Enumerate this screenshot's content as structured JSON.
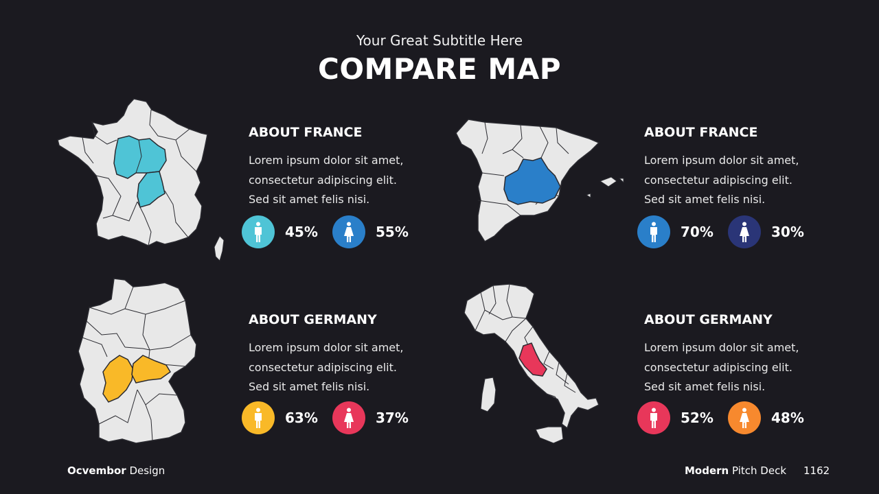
{
  "header": {
    "subtitle": "Your Great Subtitle Here",
    "title": "COMPARE MAP"
  },
  "colors": {
    "background": "#1b1a20",
    "map_fill": "#e8e8e8",
    "cyan": "#4fc4d6",
    "blue": "#2a7fc9",
    "navy": "#2a3577",
    "yellow": "#f9b928",
    "red": "#e8375a",
    "orange": "#f7892e"
  },
  "panels": [
    {
      "map": "France",
      "heading": "ABOUT FRANCE",
      "body": [
        "Lorem ipsum dolor sit amet,",
        "consectetur adipiscing elit.",
        "Sed sit amet felis nisi."
      ],
      "male": {
        "icon": "male-person-icon",
        "color": "#4fc4d6",
        "percent": "45%"
      },
      "female": {
        "icon": "female-person-icon",
        "color": "#2a7fc9",
        "percent": "55%"
      }
    },
    {
      "map": "Spain",
      "heading": "ABOUT FRANCE",
      "body": [
        "Lorem ipsum dolor sit amet,",
        "consectetur adipiscing elit.",
        "Sed sit amet felis nisi."
      ],
      "male": {
        "icon": "male-person-icon",
        "color": "#2a7fc9",
        "percent": "70%"
      },
      "female": {
        "icon": "female-person-icon",
        "color": "#2a3577",
        "percent": "30%"
      }
    },
    {
      "map": "Germany",
      "heading": "ABOUT GERMANY",
      "body": [
        "Lorem ipsum dolor sit amet,",
        "consectetur adipiscing elit.",
        "Sed sit amet felis nisi."
      ],
      "male": {
        "icon": "male-person-icon",
        "color": "#f9b928",
        "percent": "63%"
      },
      "female": {
        "icon": "female-person-icon",
        "color": "#e8375a",
        "percent": "37%"
      }
    },
    {
      "map": "Italy",
      "heading": "ABOUT GERMANY",
      "body": [
        "Lorem ipsum dolor sit amet,",
        "consectetur adipiscing elit.",
        "Sed sit amet felis nisi."
      ],
      "male": {
        "icon": "male-person-icon",
        "color": "#e8375a",
        "percent": "52%"
      },
      "female": {
        "icon": "female-person-icon",
        "color": "#f7892e",
        "percent": "48%"
      }
    }
  ],
  "footer": {
    "brand_bold": "Ocvembor",
    "brand_rest": "Design",
    "deck_bold": "Modern",
    "deck_rest": "Pitch Deck",
    "page_number": "1162"
  }
}
